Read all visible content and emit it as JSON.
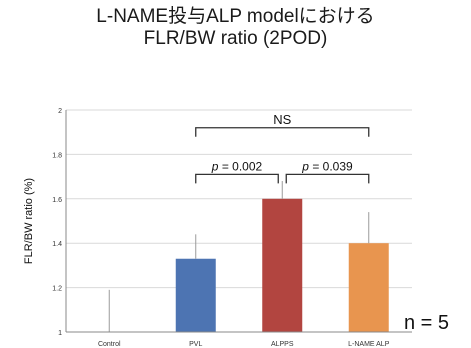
{
  "title_lines": [
    "L-NAME投与ALP modelにおける",
    "FLR/BW ratio (2POD)"
  ],
  "n_label": "n = 5",
  "colors": {
    "PVL": "#4d74b2",
    "ALPPS": "#b24540",
    "L-NAME ALP": "#e8954f",
    "grid": "#d9d9d9",
    "axis": "#888888",
    "error": "#9a9a9a",
    "bracket": "#333333"
  },
  "chart_data": {
    "type": "bar",
    "title": "",
    "xlabel": "",
    "ylabel": "FLR/BW ratio (%)",
    "ylim": [
      1,
      2
    ],
    "yticks": [
      1,
      1.2,
      1.4,
      1.6,
      1.8,
      2
    ],
    "ytick_labels": [
      "1",
      "1.2",
      "1.4",
      "1.6",
      "1.8",
      "2"
    ],
    "categories": [
      "Control",
      "PVL",
      "ALPPS",
      "L-NAME ALP"
    ],
    "values": [
      null,
      1.33,
      1.6,
      1.4
    ],
    "error_upper": [
      1.19,
      1.44,
      1.68,
      1.54
    ],
    "error_lower": [
      1.0,
      1.33,
      1.6,
      1.4
    ],
    "grid": true,
    "annotations": [
      {
        "text": "NS",
        "from": "PVL",
        "to": "L-NAME ALP",
        "level": 1.92
      },
      {
        "text": "p = 0.002",
        "from": "PVL",
        "to": "ALPPS",
        "level": 1.71
      },
      {
        "text": "p = 0.039",
        "from": "ALPPS",
        "to": "L-NAME ALP",
        "level": 1.71
      }
    ]
  }
}
